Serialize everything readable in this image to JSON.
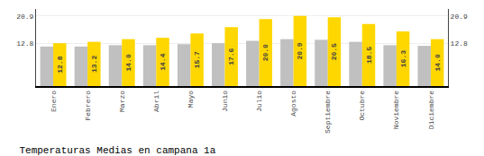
{
  "chart_data": {
    "type": "bar",
    "title": "Temperaturas Medias en campana 1a",
    "categories": [
      "Enero",
      "Febrero",
      "Marzo",
      "Abril",
      "Mayo",
      "Junio",
      "Julio",
      "Agosto",
      "Septiembre",
      "Octubre",
      "Noviembre",
      "Diciembre"
    ],
    "series": [
      {
        "color": "#C0C0C0",
        "values": [
          11.8,
          11.8,
          12.2,
          12.2,
          12.5,
          12.8,
          13.5,
          14.0,
          13.8,
          13.2,
          12.2,
          12.0
        ]
      },
      {
        "color": "#FFD700",
        "values": [
          12.8,
          13.2,
          14.0,
          14.4,
          15.7,
          17.6,
          20.0,
          20.9,
          20.5,
          18.5,
          16.3,
          14.0
        ],
        "data_labels": true,
        "value_labels": [
          "12.8",
          "13.2",
          "14.0",
          "14.4",
          "15.7",
          "17.6",
          "20.0",
          "20.9",
          "20.5",
          "18.5",
          "16.3",
          "14.0"
        ]
      }
    ],
    "ylim": [
      0,
      23.0
    ],
    "yticks": [
      12.8,
      20.9
    ],
    "y2lim": [
      0,
      23.0
    ],
    "y2ticks": [
      12.8,
      20.9
    ],
    "grid": true
  }
}
